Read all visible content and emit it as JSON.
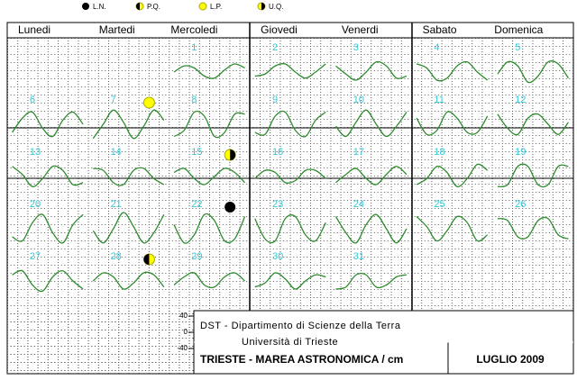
{
  "legend": [
    "L.N.",
    "P.Q.",
    "L.P.",
    "U.Q."
  ],
  "weekdays": [
    "Lunedi",
    "Martedi",
    "Mercoledi",
    "Giovedi",
    "Venerdi",
    "Sabato",
    "Domenica"
  ],
  "days": [
    {
      "day": 1,
      "tide": [
        0,
        15,
        10,
        -10,
        -15,
        5,
        20,
        10
      ]
    },
    {
      "day": 2,
      "tide": [
        -10,
        -5,
        15,
        20,
        0,
        -15,
        0,
        20
      ]
    },
    {
      "day": 3,
      "tide": [
        15,
        -5,
        -20,
        0,
        25,
        15,
        -15,
        -10
      ]
    },
    {
      "day": 4,
      "tide": [
        20,
        10,
        -20,
        -15,
        15,
        25,
        0,
        -20
      ]
    },
    {
      "day": 5,
      "tide": [
        -5,
        25,
        15,
        -25,
        -10,
        25,
        20,
        -15
      ]
    },
    {
      "day": 6,
      "tide": [
        -20,
        15,
        30,
        -10,
        -30,
        10,
        30,
        0
      ]
    },
    {
      "day": 7,
      "moon": "L.P.",
      "tide": [
        -35,
        0,
        35,
        5,
        -35,
        -5,
        35,
        10
      ]
    },
    {
      "day": 8,
      "tide": [
        -30,
        -15,
        30,
        20,
        -30,
        -20,
        25,
        25
      ]
    },
    {
      "day": 9,
      "tide": [
        -20,
        -25,
        20,
        30,
        -15,
        -30,
        10,
        30
      ]
    },
    {
      "day": 10,
      "tide": [
        -5,
        -30,
        5,
        35,
        0,
        -30,
        -5,
        30
      ]
    },
    {
      "day": 11,
      "tide": [
        15,
        -25,
        -15,
        30,
        15,
        -20,
        -20,
        20
      ]
    },
    {
      "day": 12,
      "tide": [
        25,
        -10,
        -25,
        15,
        25,
        0,
        -25,
        5
      ]
    },
    {
      "day": 13,
      "tide": [
        25,
        5,
        -25,
        -5,
        25,
        15,
        -20,
        -15
      ]
    },
    {
      "day": 14,
      "tide": [
        20,
        15,
        -15,
        -20,
        15,
        20,
        -5,
        -20
      ]
    },
    {
      "day": 15,
      "moon": "U.Q.",
      "tide": [
        10,
        20,
        -5,
        -20,
        0,
        20,
        10,
        -15
      ]
    },
    {
      "day": 16,
      "tide": [
        -5,
        15,
        10,
        -15,
        -10,
        15,
        15,
        -5
      ]
    },
    {
      "day": 17,
      "tide": [
        -15,
        5,
        20,
        -5,
        -20,
        5,
        25,
        5
      ]
    },
    {
      "day": 18,
      "tide": [
        -20,
        -5,
        25,
        10,
        -25,
        -5,
        30,
        15
      ]
    },
    {
      "day": 19,
      "tide": [
        -25,
        -20,
        25,
        25,
        -20,
        -20,
        25,
        25
      ]
    },
    {
      "day": 20,
      "tide": [
        -20,
        -30,
        15,
        35,
        -10,
        -35,
        10,
        35
      ]
    },
    {
      "day": 21,
      "tide": [
        -5,
        -35,
        0,
        40,
        5,
        -35,
        -10,
        35
      ]
    },
    {
      "day": 22,
      "moon": "L.N.",
      "tide": [
        10,
        -35,
        -15,
        35,
        20,
        -30,
        -25,
        30
      ]
    },
    {
      "day": 23,
      "tide": [
        25,
        -25,
        -30,
        25,
        30,
        -15,
        -30,
        15
      ]
    },
    {
      "day": 24,
      "tide": [
        30,
        -10,
        -35,
        10,
        35,
        0,
        -35,
        0
      ]
    },
    {
      "day": 25,
      "tide": [
        30,
        5,
        -30,
        -5,
        30,
        15,
        -30,
        -15
      ]
    },
    {
      "day": 26,
      "tide": [
        25,
        20,
        -20,
        -20,
        20,
        25,
        -15,
        -25
      ]
    },
    {
      "day": 27,
      "tide": [
        15,
        25,
        -10,
        -25,
        10,
        25,
        0,
        -20
      ]
    },
    {
      "day": 28,
      "moon": "P.Q.",
      "tide": [
        0,
        20,
        10,
        -20,
        -5,
        20,
        15,
        -15
      ]
    },
    {
      "day": 29,
      "tide": [
        -10,
        10,
        20,
        -10,
        -15,
        10,
        20,
        0
      ]
    },
    {
      "day": 30,
      "tide": [
        -15,
        -5,
        20,
        5,
        -20,
        0,
        15,
        10
      ]
    },
    {
      "day": 31,
      "tide": [
        -20,
        -15,
        15,
        15,
        -15,
        -10,
        10,
        15
      ]
    }
  ],
  "scale_ticks": [
    40,
    0,
    -40
  ],
  "footer": {
    "institute": "DST - Dipartimento di Scienze della Terra",
    "university": "Università di Trieste",
    "title": "TRIESTE - MAREA ASTRONOMICA / cm",
    "month": "LUGLIO 2009"
  }
}
